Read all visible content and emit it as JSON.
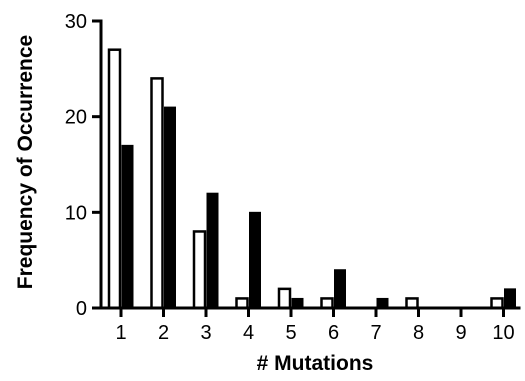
{
  "chart_data": {
    "type": "bar",
    "xlabel": "# Mutations",
    "ylabel": "Frequency of Occurrence",
    "categories": [
      "1",
      "2",
      "3",
      "4",
      "5",
      "6",
      "7",
      "8",
      "9",
      "10"
    ],
    "ylim": [
      0,
      30
    ],
    "yticks": [
      0,
      10,
      20,
      30
    ],
    "grid": false,
    "legend": "none",
    "series": [
      {
        "values": [
          27,
          24,
          8,
          1,
          2,
          1,
          0,
          1,
          0,
          1
        ],
        "fill": "#ffffff",
        "stroke": "#000000"
      },
      {
        "values": [
          17,
          21,
          12,
          10,
          1,
          4,
          1,
          0,
          0,
          2
        ],
        "fill": "#000000",
        "stroke": "#000000"
      }
    ]
  }
}
